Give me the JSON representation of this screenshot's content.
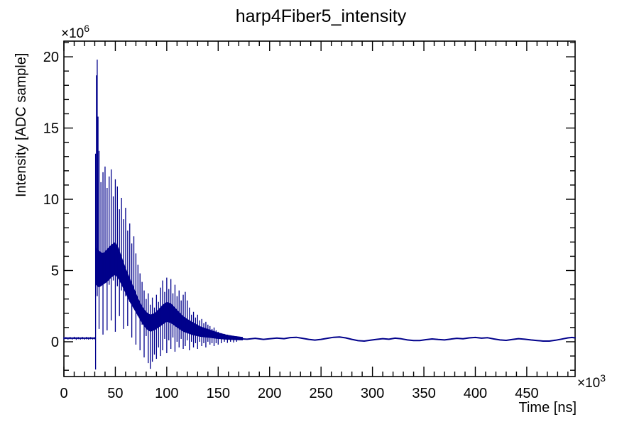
{
  "page": {
    "background": "#ffffff",
    "text_color": "#000000"
  },
  "chart_data": {
    "type": "line",
    "title": "harp4Fiber5_intensity",
    "xlabel": "Time [ns]",
    "ylabel": "Intensity [ADC sample]",
    "unit_prefix": "×10",
    "x_unit_exponent": "3",
    "y_unit_exponent": "6",
    "xlim": [
      0,
      497
    ],
    "ylim": [
      -2.44,
      21.1
    ],
    "x_major_ticks": [
      0,
      50,
      100,
      150,
      200,
      250,
      300,
      350,
      400,
      450
    ],
    "x_minor_step": 10,
    "x_minor_max": 490,
    "y_major_ticks": [
      0,
      5,
      10,
      15,
      20
    ],
    "y_minor_step": 1,
    "y_minor_range": [
      -2,
      21
    ],
    "grid": false,
    "legend": "none",
    "axis_color": "#000000",
    "series": [
      {
        "name": "harp4Fiber5_intensity",
        "color": "#00008b",
        "peak_value_e6": 19.8,
        "baseline_pre": [
          [
            0,
            0.25
          ],
          [
            30.5,
            0.25
          ]
        ],
        "spike_bins": [
          [
            0,
            0.16,
            0.34
          ],
          [
            2,
            0.19,
            0.33
          ],
          [
            4,
            0.15,
            0.31
          ],
          [
            6,
            0.18,
            0.34
          ],
          [
            8,
            0.15,
            0.3
          ],
          [
            10,
            0.19,
            0.35
          ],
          [
            12,
            0.14,
            0.31
          ],
          [
            14,
            0.18,
            0.33
          ],
          [
            16,
            0.15,
            0.3
          ],
          [
            18,
            0.18,
            0.34
          ],
          [
            20,
            0.15,
            0.3
          ],
          [
            22,
            0.17,
            0.34
          ],
          [
            24,
            0.15,
            0.31
          ],
          [
            26,
            0.18,
            0.33
          ],
          [
            28,
            0.16,
            0.3
          ],
          [
            30,
            0.17,
            0.32
          ],
          [
            30.8,
            -1.95,
            13.2
          ],
          [
            31.6,
            4.0,
            18.7
          ],
          [
            32.4,
            3.2,
            19.8
          ],
          [
            33.2,
            4.4,
            15.8
          ],
          [
            34.2,
            0.9,
            13.4
          ],
          [
            36,
            4.4,
            11.2
          ],
          [
            38,
            0.5,
            11.9
          ],
          [
            40,
            4.2,
            12.3
          ],
          [
            42,
            0.8,
            10.8
          ],
          [
            44,
            4.0,
            11.6
          ],
          [
            46,
            1.5,
            12.1
          ],
          [
            48,
            4.3,
            10.2
          ],
          [
            50,
            0.7,
            11.4
          ],
          [
            52,
            3.9,
            10.9
          ],
          [
            54,
            1.8,
            9.3
          ],
          [
            56,
            3.6,
            10.1
          ],
          [
            58,
            0.9,
            8.6
          ],
          [
            60,
            3.2,
            9.4
          ],
          [
            62,
            1.1,
            7.8
          ],
          [
            64,
            2.8,
            8.3
          ],
          [
            66,
            0.3,
            6.9
          ],
          [
            68,
            2.4,
            7.4
          ],
          [
            70,
            -0.2,
            6.2
          ],
          [
            72,
            1.8,
            5.4
          ],
          [
            74,
            -0.6,
            4.8
          ],
          [
            76,
            1.2,
            4.2
          ],
          [
            78,
            -1.1,
            3.6
          ],
          [
            80,
            0.4,
            3.0
          ],
          [
            82,
            -1.5,
            3.4
          ],
          [
            84,
            -1.9,
            2.6
          ],
          [
            86,
            -1.4,
            3.1
          ],
          [
            88,
            -0.9,
            2.4
          ],
          [
            90,
            -1.2,
            3.3
          ],
          [
            92,
            -0.4,
            2.8
          ],
          [
            94,
            -1.0,
            3.8
          ],
          [
            96,
            -0.6,
            4.3
          ],
          [
            98,
            0.2,
            3.5
          ],
          [
            100,
            -0.8,
            4.5
          ],
          [
            102,
            0.1,
            3.7
          ],
          [
            104,
            -0.5,
            4.4
          ],
          [
            106,
            0.3,
            3.4
          ],
          [
            108,
            -0.7,
            4.0
          ],
          [
            110,
            0.0,
            3.2
          ],
          [
            112,
            -0.4,
            3.6
          ],
          [
            114,
            0.2,
            2.9
          ],
          [
            116,
            -0.5,
            3.3
          ],
          [
            118,
            -0.3,
            3.5
          ],
          [
            120,
            0.1,
            2.9
          ],
          [
            122,
            -0.6,
            2.4
          ],
          [
            124,
            0.0,
            1.9
          ],
          [
            126,
            -0.4,
            2.1
          ],
          [
            128,
            -0.1,
            1.7
          ],
          [
            130,
            -0.5,
            1.9
          ],
          [
            132,
            0.0,
            1.5
          ],
          [
            134,
            -0.3,
            1.6
          ],
          [
            136,
            -0.1,
            1.3
          ],
          [
            138,
            -0.4,
            1.4
          ],
          [
            140,
            0.0,
            1.2
          ],
          [
            142,
            -0.2,
            1.1
          ],
          [
            144,
            -0.1,
            0.9
          ],
          [
            146,
            -0.3,
            1.0
          ],
          [
            148,
            -0.1,
            0.8
          ],
          [
            150,
            -0.2,
            0.7
          ],
          [
            153,
            -0.1,
            0.6
          ],
          [
            156,
            0.0,
            0.55
          ],
          [
            159,
            -0.08,
            0.5
          ],
          [
            162,
            0.0,
            0.45
          ],
          [
            165,
            -0.05,
            0.42
          ],
          [
            168,
            0.0,
            0.38
          ]
        ],
        "dense_core": [
          [
            31,
            4.0,
            6.6
          ],
          [
            34,
            3.8,
            6.4
          ],
          [
            38,
            4.0,
            6.2
          ],
          [
            42,
            4.2,
            6.5
          ],
          [
            46,
            4.5,
            6.8
          ],
          [
            50,
            4.7,
            7.0
          ],
          [
            53,
            4.4,
            6.6
          ],
          [
            56,
            4.0,
            6.0
          ],
          [
            60,
            3.4,
            5.2
          ],
          [
            64,
            2.8,
            4.5
          ],
          [
            68,
            2.3,
            3.8
          ],
          [
            72,
            1.8,
            3.1
          ],
          [
            76,
            1.3,
            2.5
          ],
          [
            80,
            0.9,
            2.1
          ],
          [
            84,
            0.7,
            1.9
          ],
          [
            88,
            0.8,
            2.0
          ],
          [
            92,
            1.0,
            2.3
          ],
          [
            96,
            1.2,
            2.6
          ],
          [
            100,
            1.4,
            2.8
          ],
          [
            104,
            1.3,
            2.7
          ],
          [
            108,
            1.1,
            2.4
          ],
          [
            112,
            0.9,
            2.1
          ],
          [
            116,
            0.7,
            1.8
          ],
          [
            120,
            0.6,
            1.6
          ],
          [
            126,
            0.45,
            1.35
          ],
          [
            132,
            0.35,
            1.1
          ],
          [
            138,
            0.3,
            0.95
          ],
          [
            144,
            0.25,
            0.8
          ],
          [
            150,
            0.2,
            0.65
          ],
          [
            158,
            0.15,
            0.5
          ],
          [
            166,
            0.12,
            0.4
          ],
          [
            174,
            0.1,
            0.33
          ]
        ],
        "tail": [
          [
            170,
            0.22
          ],
          [
            178,
            0.18
          ],
          [
            186,
            0.24
          ],
          [
            194,
            0.17
          ],
          [
            200,
            0.21
          ],
          [
            207,
            0.26
          ],
          [
            214,
            0.22
          ],
          [
            220,
            0.29
          ],
          [
            226,
            0.31
          ],
          [
            232,
            0.24
          ],
          [
            238,
            0.17
          ],
          [
            244,
            0.12
          ],
          [
            250,
            0.17
          ],
          [
            256,
            0.24
          ],
          [
            262,
            0.31
          ],
          [
            268,
            0.33
          ],
          [
            274,
            0.27
          ],
          [
            280,
            0.17
          ],
          [
            286,
            0.08
          ],
          [
            292,
            0.05
          ],
          [
            298,
            0.11
          ],
          [
            304,
            0.17
          ],
          [
            310,
            0.22
          ],
          [
            316,
            0.18
          ],
          [
            322,
            0.25
          ],
          [
            328,
            0.21
          ],
          [
            334,
            0.13
          ],
          [
            340,
            0.09
          ],
          [
            346,
            0.09
          ],
          [
            352,
            0.15
          ],
          [
            358,
            0.2
          ],
          [
            364,
            0.16
          ],
          [
            370,
            0.13
          ],
          [
            376,
            0.19
          ],
          [
            382,
            0.24
          ],
          [
            388,
            0.21
          ],
          [
            394,
            0.27
          ],
          [
            400,
            0.3
          ],
          [
            406,
            0.25
          ],
          [
            412,
            0.28
          ],
          [
            418,
            0.2
          ],
          [
            424,
            0.13
          ],
          [
            430,
            0.1
          ],
          [
            436,
            0.16
          ],
          [
            442,
            0.22
          ],
          [
            448,
            0.18
          ],
          [
            454,
            0.13
          ],
          [
            460,
            0.09
          ],
          [
            466,
            0.05
          ],
          [
            472,
            0.05
          ],
          [
            478,
            0.11
          ],
          [
            484,
            0.19
          ],
          [
            490,
            0.27
          ],
          [
            494,
            0.3
          ],
          [
            497,
            0.27
          ]
        ]
      }
    ]
  }
}
